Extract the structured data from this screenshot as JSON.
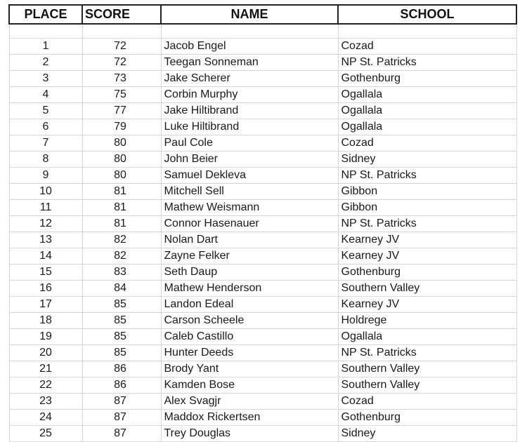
{
  "headers": {
    "place": "PLACE",
    "score": "SCORE",
    "name": "NAME",
    "school": "SCHOOL"
  },
  "rows": [
    {
      "place": "1",
      "score": "72",
      "name": "Jacob Engel",
      "school": "Cozad"
    },
    {
      "place": "2",
      "score": "72",
      "name": "Teegan Sonneman",
      "school": "NP St. Patricks"
    },
    {
      "place": "3",
      "score": "73",
      "name": "Jake Scherer",
      "school": "Gothenburg"
    },
    {
      "place": "4",
      "score": "75",
      "name": "Corbin Murphy",
      "school": "Ogallala"
    },
    {
      "place": "5",
      "score": "77",
      "name": "Jake Hiltibrand",
      "school": "Ogallala"
    },
    {
      "place": "6",
      "score": "79",
      "name": "Luke Hiltibrand",
      "school": "Ogallala"
    },
    {
      "place": "7",
      "score": "80",
      "name": "Paul Cole",
      "school": "Cozad"
    },
    {
      "place": "8",
      "score": "80",
      "name": "John Beier",
      "school": "Sidney"
    },
    {
      "place": "9",
      "score": "80",
      "name": "Samuel Dekleva",
      "school": "NP St. Patricks"
    },
    {
      "place": "10",
      "score": "81",
      "name": "Mitchell Sell",
      "school": "Gibbon"
    },
    {
      "place": "11",
      "score": "81",
      "name": "Mathew Weismann",
      "school": "Gibbon"
    },
    {
      "place": "12",
      "score": "81",
      "name": "Connor Hasenauer",
      "school": "NP St. Patricks"
    },
    {
      "place": "13",
      "score": "82",
      "name": "Nolan Dart",
      "school": "Kearney JV"
    },
    {
      "place": "14",
      "score": "82",
      "name": "Zayne Felker",
      "school": "Kearney JV"
    },
    {
      "place": "15",
      "score": "83",
      "name": "Seth Daup",
      "school": "Gothenburg"
    },
    {
      "place": "16",
      "score": "84",
      "name": "Mathew Henderson",
      "school": "Southern Valley"
    },
    {
      "place": "17",
      "score": "85",
      "name": "Landon Edeal",
      "school": "Kearney JV"
    },
    {
      "place": "18",
      "score": "85",
      "name": "Carson Scheele",
      "school": "Holdrege"
    },
    {
      "place": "19",
      "score": "85",
      "name": "Caleb Castillo",
      "school": "Ogallala"
    },
    {
      "place": "20",
      "score": "85",
      "name": "Hunter Deeds",
      "school": "NP St. Patricks"
    },
    {
      "place": "21",
      "score": "86",
      "name": "Brody Yant",
      "school": "Southern Valley"
    },
    {
      "place": "22",
      "score": "86",
      "name": "Kamden Bose",
      "school": "Southern Valley"
    },
    {
      "place": "23",
      "score": "87",
      "name": "Alex Svagjr",
      "school": "Cozad"
    },
    {
      "place": "24",
      "score": "87",
      "name": "Maddox Rickertsen",
      "school": "Gothenburg"
    },
    {
      "place": "25",
      "score": "87",
      "name": "Trey Douglas",
      "school": "Sidney"
    }
  ]
}
